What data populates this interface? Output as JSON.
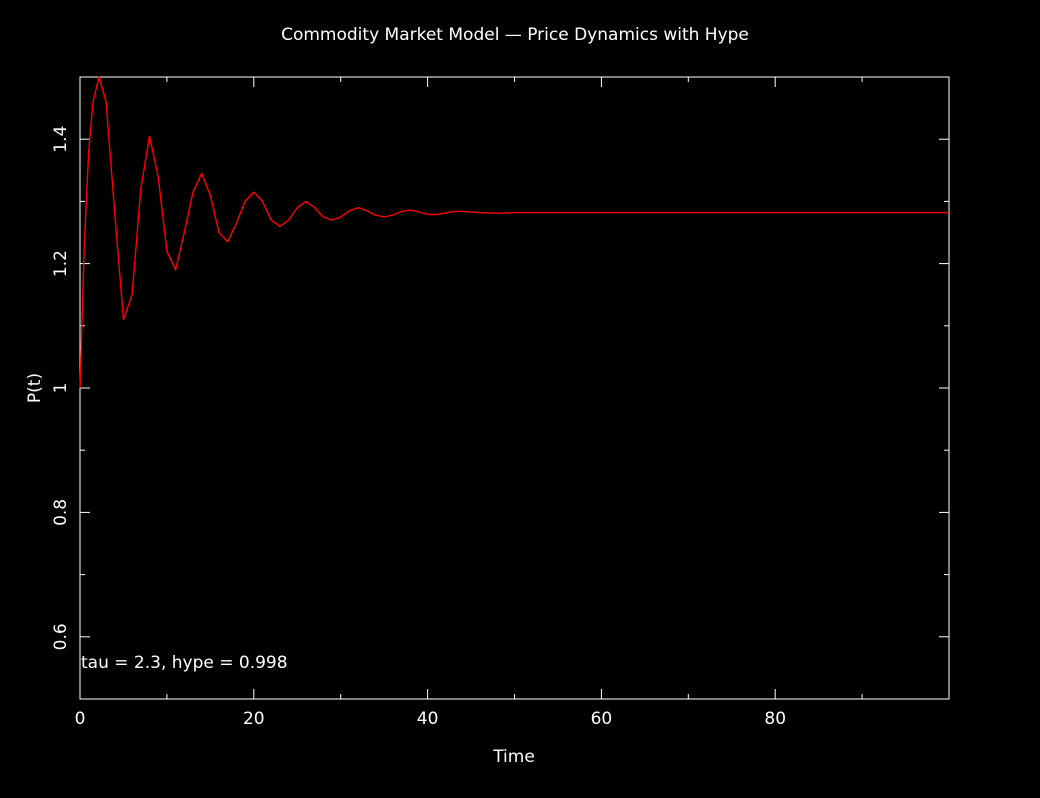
{
  "chart_data": {
    "type": "line",
    "title": "Commodity Market Model — Price Dynamics with Hype",
    "xlabel": "Time",
    "ylabel": "P(t)",
    "xlim": [
      0,
      100
    ],
    "ylim": [
      0.5,
      1.5
    ],
    "xticks": [
      0,
      20,
      40,
      60,
      80
    ],
    "xtick_labels": [
      "0",
      "20",
      "40",
      "60",
      "80"
    ],
    "yticks": [
      0.6,
      0.8,
      1,
      1.2,
      1.4
    ],
    "ytick_labels": [
      "0.6",
      "0.8",
      "1",
      "1.2",
      "1.4"
    ],
    "grid": false,
    "annotation": "tau = 2.3, hype = 0.998",
    "colors": {
      "background": "#000000",
      "axes": "#ffffff",
      "line": "#ff0000"
    },
    "series": [
      {
        "x": [
          0,
          0.5,
          1,
          1.5,
          2.2,
          3,
          4,
          5,
          6,
          7,
          8,
          9,
          10,
          11,
          12,
          13,
          14,
          15,
          16,
          17,
          18,
          19,
          20,
          21,
          22,
          23,
          24,
          25,
          26,
          27,
          28,
          29,
          30,
          31,
          32,
          33,
          34,
          35,
          36,
          37,
          38,
          39,
          40,
          41,
          42,
          43,
          44,
          46,
          48,
          50,
          55,
          60,
          65,
          70,
          75,
          80,
          85,
          90,
          95,
          100
        ],
        "y": [
          1.0,
          1.23,
          1.38,
          1.46,
          1.5,
          1.46,
          1.28,
          1.11,
          1.15,
          1.32,
          1.405,
          1.34,
          1.22,
          1.19,
          1.25,
          1.315,
          1.345,
          1.31,
          1.25,
          1.235,
          1.265,
          1.3,
          1.315,
          1.3,
          1.27,
          1.26,
          1.27,
          1.29,
          1.3,
          1.29,
          1.275,
          1.27,
          1.275,
          1.285,
          1.29,
          1.285,
          1.278,
          1.275,
          1.278,
          1.284,
          1.286,
          1.283,
          1.279,
          1.279,
          1.281,
          1.284,
          1.284,
          1.282,
          1.281,
          1.282,
          1.282,
          1.282,
          1.282,
          1.282,
          1.282,
          1.282,
          1.282,
          1.282,
          1.282,
          1.282
        ]
      }
    ]
  }
}
